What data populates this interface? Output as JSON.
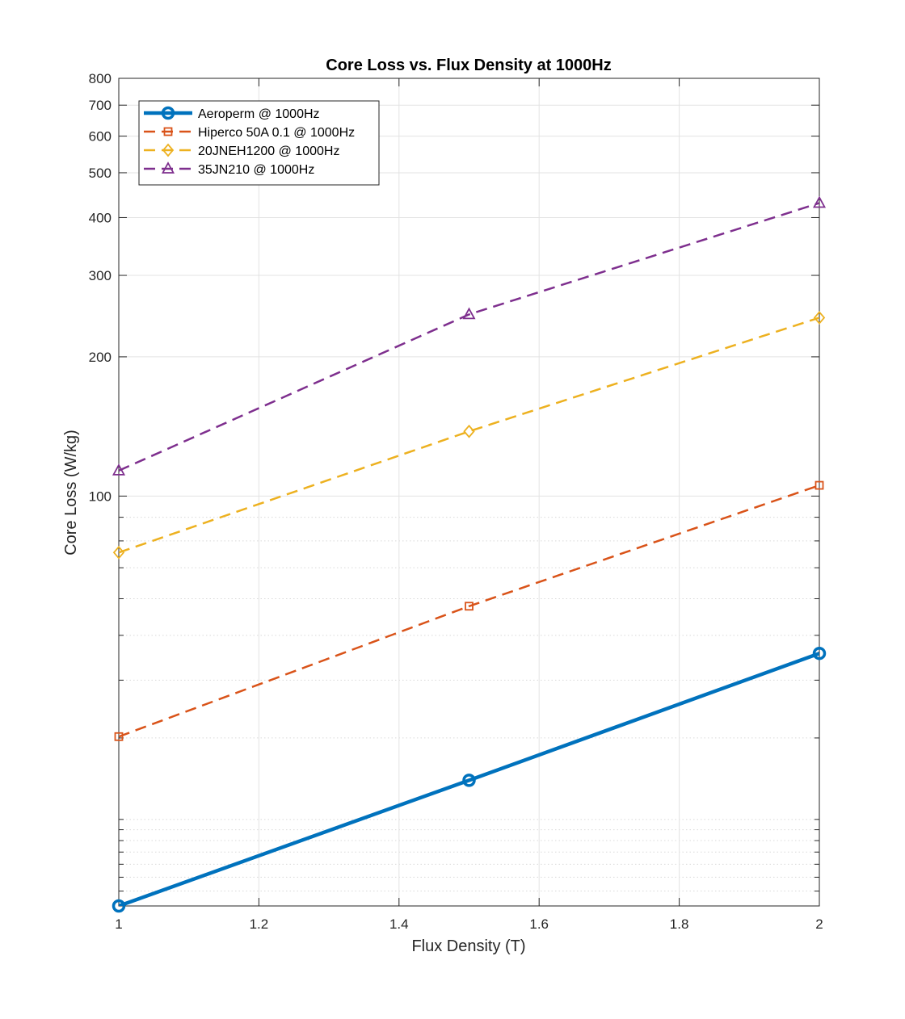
{
  "chart_data": {
    "type": "line",
    "title": "Core Loss vs. Flux Density at 1000Hz",
    "xlabel": "Flux Density (T)",
    "ylabel": "Core Loss (W/kg)",
    "x_scale": "linear",
    "y_scale": "log",
    "xlim": [
      1,
      2
    ],
    "ylim": [
      13,
      800
    ],
    "xticks": [
      1,
      1.2,
      1.4,
      1.6,
      1.8,
      2
    ],
    "xtick_labels": [
      "1",
      "1.2",
      "1.4",
      "1.6",
      "1.8",
      "2"
    ],
    "yticks": [
      100,
      200,
      300,
      400,
      500,
      600,
      700,
      800
    ],
    "ytick_labels": [
      "100",
      "200",
      "300",
      "400",
      "500",
      "600",
      "700",
      "800"
    ],
    "grid": true,
    "minor_grid": true,
    "legend_position": "top-left",
    "series": [
      {
        "name": "Aeroperm @ 1000Hz",
        "x": [
          1,
          1.5,
          2
        ],
        "y": [
          13,
          24.3,
          45.7
        ],
        "color": "#0072BD",
        "marker": "circle",
        "line_style": "solid"
      },
      {
        "name": "Hiperco 50A 0.1 @ 1000Hz",
        "x": [
          1,
          1.5,
          2
        ],
        "y": [
          30.2,
          57.8,
          105.5
        ],
        "color": "#D95319",
        "marker": "square",
        "line_style": "dashed"
      },
      {
        "name": "20JNEH1200 @ 1000Hz",
        "x": [
          1,
          1.5,
          2
        ],
        "y": [
          75.5,
          138,
          243
        ],
        "color": "#EDB120",
        "marker": "diamond",
        "line_style": "dashed"
      },
      {
        "name": "35JN210 @ 1000Hz",
        "x": [
          1,
          1.5,
          2
        ],
        "y": [
          113.5,
          247,
          430
        ],
        "color": "#7E2F8E",
        "marker": "triangle",
        "line_style": "dashed"
      }
    ]
  }
}
